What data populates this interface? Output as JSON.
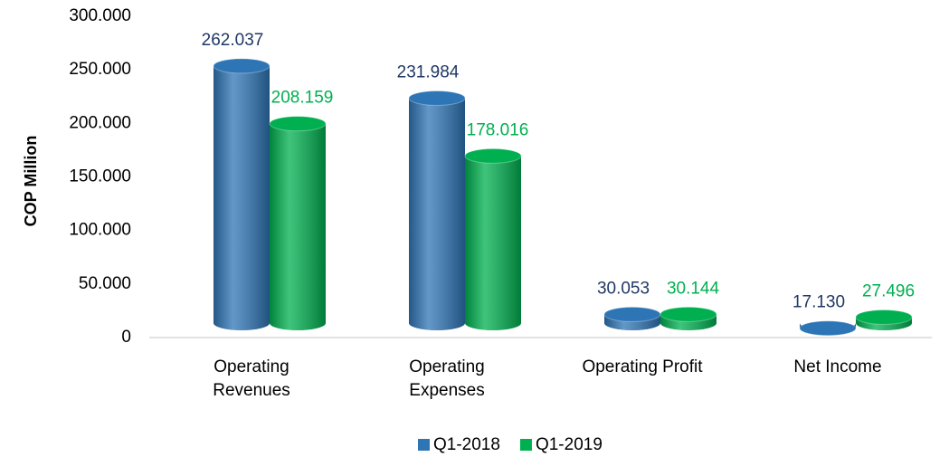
{
  "chart_data": {
    "type": "bar",
    "y_label": "COP Million",
    "categories": [
      "Operating Revenues",
      "Operating Expenses",
      "Operating Profit",
      "Net Income"
    ],
    "series": [
      {
        "name": "Q1-2018",
        "color": "#2e75b6",
        "label_color": "#1f3864",
        "values": [
          262037,
          231984,
          30053,
          17130
        ],
        "value_labels": [
          "262.037",
          "231.984",
          "30.053",
          "17.130"
        ]
      },
      {
        "name": "Q1-2019",
        "color": "#00b050",
        "label_color": "#00b050",
        "values": [
          208159,
          178016,
          30144,
          27496
        ],
        "value_labels": [
          "208.159",
          "178.016",
          "30.144",
          "27.496"
        ]
      }
    ],
    "ylim": [
      0,
      300000
    ],
    "yticks": [
      0,
      {
        "value": 50000,
        "label": "50.000"
      },
      {
        "value": 100000,
        "label": "100.000"
      },
      {
        "value": 150000,
        "label": "150.000"
      },
      {
        "value": 200000,
        "label": "200.000"
      },
      {
        "value": 250000,
        "label": "250.000"
      },
      {
        "value": 300000,
        "label": "300.000"
      }
    ],
    "grid": false,
    "legend": "bottom"
  }
}
